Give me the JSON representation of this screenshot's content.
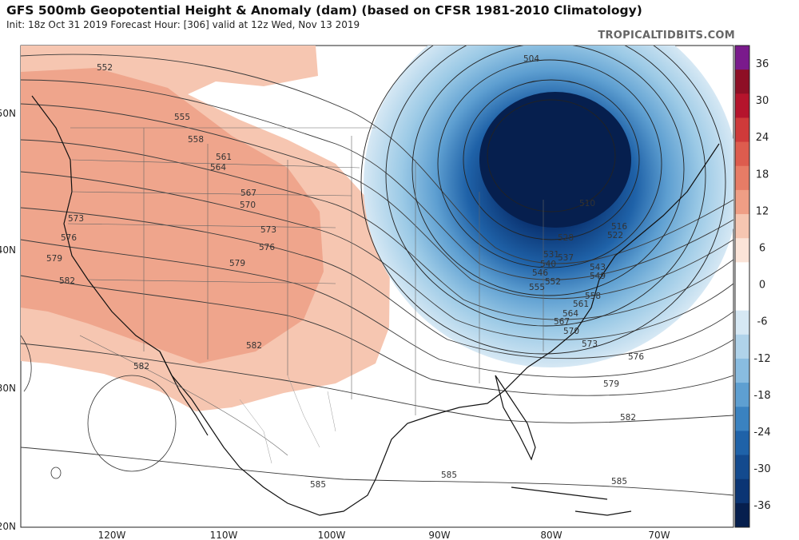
{
  "header": {
    "title": "GFS 500mb Geopotential Height & Anomaly (dam) (based on CFSR 1981-2010 Climatology)",
    "subtitle": "Init: 18z Oct 31 2019   Forecast Hour: [306]   valid at 12z Wed, Nov 13 2019",
    "brand": "TROPICALTIDBITS.COM"
  },
  "map": {
    "lon_ticks": [
      "120W",
      "110W",
      "100W",
      "90W",
      "80W",
      "70W"
    ],
    "lat_ticks": [
      "50N",
      "40N",
      "30N",
      "20N"
    ],
    "height_contours": [
      {
        "label": "504"
      },
      {
        "label": "510"
      },
      {
        "label": "516"
      },
      {
        "label": "522"
      },
      {
        "label": "528"
      },
      {
        "label": "531"
      },
      {
        "label": "537"
      },
      {
        "label": "540"
      },
      {
        "label": "543"
      },
      {
        "label": "546"
      },
      {
        "label": "549"
      },
      {
        "label": "552"
      },
      {
        "label": "555"
      },
      {
        "label": "558"
      },
      {
        "label": "561"
      },
      {
        "label": "564"
      },
      {
        "label": "567"
      },
      {
        "label": "570"
      },
      {
        "label": "573"
      },
      {
        "label": "576"
      },
      {
        "label": "579"
      },
      {
        "label": "582"
      },
      {
        "label": "585"
      }
    ]
  },
  "colorbar": {
    "ticks": [
      "36",
      "30",
      "24",
      "18",
      "12",
      "6",
      "0",
      "-6",
      "-12",
      "-18",
      "-24",
      "-30",
      "-36"
    ],
    "colors": [
      "#7a1a8c",
      "#8e0f25",
      "#b5142c",
      "#cf3a3a",
      "#dd5c4e",
      "#e77c66",
      "#ef9e85",
      "#f6c6b1",
      "#fbe4d8",
      "#ffffff",
      "#ffffff",
      "#d6e8f4",
      "#b0d3ea",
      "#89bce0",
      "#5e9fd1",
      "#3a82c0",
      "#1f62a8",
      "#134a8e",
      "#0b3574",
      "#061f4e"
    ]
  }
}
